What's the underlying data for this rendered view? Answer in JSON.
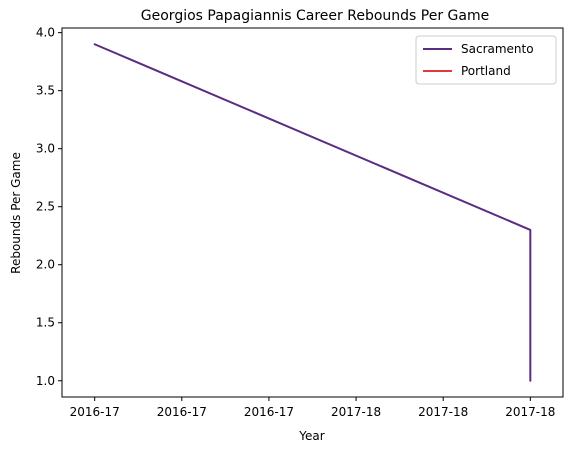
{
  "chart_data": {
    "type": "line",
    "title": "Georgios Papagiannis Career Rebounds Per Game",
    "xlabel": "Year",
    "ylabel": "Rebounds Per Game",
    "x_tick_labels": [
      "2016-17",
      "2016-17",
      "2016-17",
      "2017-18",
      "2017-18",
      "2017-18"
    ],
    "y_ticks": [
      "1.0",
      "1.5",
      "2.0",
      "2.5",
      "3.0",
      "3.5",
      "4.0"
    ],
    "ylim": [
      0.86,
      4.04
    ],
    "xlim": [
      -0.075,
      1.075
    ],
    "grid": false,
    "legend_position": "top-right",
    "series": [
      {
        "name": "Sacramento",
        "color": "#5a2d81",
        "points": [
          {
            "x": 0,
            "y": 3.9
          },
          {
            "x": 1,
            "y": 2.3
          },
          {
            "x": 1,
            "y": 1.0
          }
        ]
      },
      {
        "name": "Portland",
        "color": "#e03a3e",
        "points": [
          {
            "x": 1,
            "y": 1.0
          }
        ]
      }
    ]
  }
}
